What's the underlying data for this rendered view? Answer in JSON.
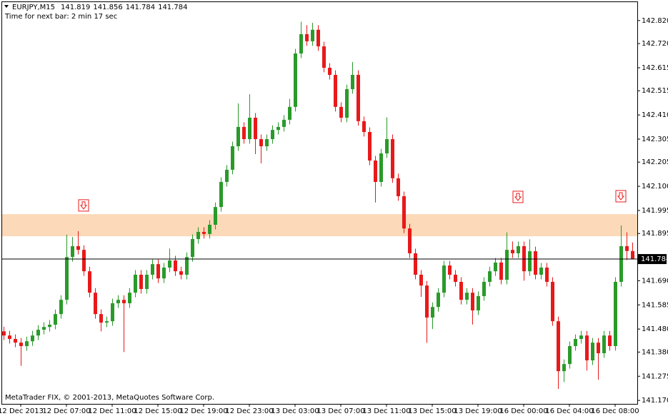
{
  "chart_data": {
    "type": "candlestick",
    "symbol": "EURJPY,M15",
    "timer": "Time for next bar: 2 min 17 sec",
    "footer": "MetaTrader FIX, © 2001-2013, MetaQuotes Software Corp.",
    "bull_color": "#2a9a2a",
    "bear_color": "#e8191a",
    "zone_color": "#fcd9b8",
    "categories": [
      null,
      null,
      null,
      "12 Dec 2013",
      null,
      null,
      null,
      null,
      null,
      null,
      null,
      "12 Dec 07:00",
      null,
      null,
      null,
      null,
      null,
      null,
      null,
      "12 Dec 11:00",
      null,
      null,
      null,
      null,
      null,
      null,
      null,
      "12 Dec 15:00",
      null,
      null,
      null,
      null,
      null,
      null,
      null,
      "12 Dec 19:00",
      null,
      null,
      null,
      null,
      null,
      null,
      null,
      "12 Dec 23:00",
      null,
      null,
      null,
      null,
      null,
      null,
      null,
      "13 Dec 03:00",
      null,
      null,
      null,
      null,
      null,
      null,
      null,
      "13 Dec 07:00",
      null,
      null,
      null,
      null,
      null,
      null,
      null,
      "13 Dec 11:00",
      null,
      null,
      null,
      null,
      null,
      null,
      null,
      "13 Dec 15:00",
      null,
      null,
      null,
      null,
      null,
      null,
      null,
      "13 Dec 19:00",
      null,
      null,
      null,
      null,
      null,
      null,
      null,
      "16 Dec 00:00",
      null,
      null,
      null,
      null,
      null,
      null,
      null,
      "16 Dec 04:00",
      null,
      null,
      null,
      null,
      null,
      null,
      null,
      "16 Dec 08:00",
      null,
      null,
      null
    ],
    "open": [
      141.47,
      141.452,
      141.437,
      141.421,
      141.406,
      141.427,
      141.452,
      141.477,
      141.489,
      141.499,
      141.545,
      141.607,
      141.793,
      141.84,
      141.824,
      141.731,
      141.638,
      141.545,
      141.508,
      141.514,
      141.592,
      141.607,
      141.592,
      141.638,
      141.716,
      141.654,
      141.716,
      141.762,
      141.7,
      141.747,
      141.778,
      141.731,
      141.716,
      141.793,
      141.871,
      141.902,
      141.893,
      141.933,
      142.01,
      142.119,
      142.172,
      142.274,
      142.358,
      142.305,
      142.398,
      142.305,
      142.274,
      142.305,
      142.345,
      142.358,
      142.389,
      142.445,
      142.677,
      142.761,
      142.73,
      142.78,
      142.708,
      142.615,
      142.584,
      142.445,
      142.398,
      142.522,
      142.584,
      142.383,
      142.336,
      142.212,
      142.119,
      142.243,
      142.305,
      142.135,
      142.057,
      141.917,
      141.809,
      141.716,
      141.669,
      141.53,
      141.576,
      141.638,
      141.756,
      141.716,
      141.685,
      141.607,
      141.638,
      141.561,
      141.623,
      141.685,
      141.731,
      141.769,
      141.694,
      141.824,
      141.809,
      141.84,
      141.731,
      141.818,
      141.716,
      141.747,
      141.685,
      141.514,
      141.297,
      141.328,
      141.406,
      141.437,
      141.452,
      141.344,
      141.421,
      141.375,
      141.452,
      141.406,
      141.685,
      141.84,
      141.819
    ],
    "high": [
      141.49,
      141.472,
      141.457,
      141.441,
      141.447,
      141.472,
      141.497,
      141.509,
      141.519,
      141.565,
      141.627,
      141.89,
      141.88,
      141.905,
      141.844,
      141.751,
      141.658,
      141.565,
      141.534,
      141.612,
      141.627,
      141.627,
      141.658,
      141.736,
      141.736,
      141.736,
      141.782,
      141.782,
      141.767,
      141.83,
      141.798,
      141.751,
      141.813,
      141.891,
      141.922,
      141.922,
      141.953,
      142.03,
      142.139,
      142.192,
      142.294,
      142.46,
      142.378,
      142.5,
      142.418,
      142.325,
      142.325,
      142.365,
      142.378,
      142.409,
      142.48,
      142.697,
      142.815,
      142.8,
      142.81,
      142.8,
      142.728,
      142.635,
      142.604,
      142.465,
      142.542,
      142.64,
      142.604,
      142.403,
      142.356,
      142.232,
      142.263,
      142.4,
      142.325,
      142.155,
      142.077,
      141.937,
      141.829,
      141.736,
      141.689,
      141.596,
      141.658,
      141.776,
      141.776,
      141.736,
      141.705,
      141.658,
      141.658,
      141.643,
      141.705,
      141.751,
      141.789,
      141.789,
      141.9,
      141.86,
      141.86,
      141.86,
      141.87,
      141.838,
      141.767,
      141.767,
      141.705,
      141.534,
      141.348,
      141.426,
      141.457,
      141.472,
      141.472,
      141.441,
      141.441,
      141.472,
      141.472,
      141.705,
      141.93,
      141.9,
      141.856
    ],
    "low": [
      141.432,
      141.417,
      141.401,
      141.32,
      141.386,
      141.407,
      141.432,
      141.457,
      141.469,
      141.479,
      141.525,
      141.587,
      141.773,
      141.804,
      141.711,
      141.618,
      141.525,
      141.47,
      141.488,
      141.494,
      141.572,
      141.38,
      141.572,
      141.618,
      141.634,
      141.634,
      141.696,
      141.68,
      141.68,
      141.727,
      141.711,
      141.696,
      141.696,
      141.773,
      141.851,
      141.873,
      141.873,
      141.913,
      141.99,
      142.099,
      142.152,
      142.254,
      142.285,
      142.285,
      142.24,
      142.2,
      142.254,
      142.285,
      142.325,
      142.338,
      142.369,
      142.425,
      142.657,
      142.71,
      142.71,
      142.688,
      142.595,
      142.564,
      142.425,
      142.378,
      142.378,
      142.502,
      142.363,
      142.316,
      142.192,
      142.03,
      142.099,
      142.223,
      142.115,
      142.037,
      141.897,
      141.789,
      141.696,
      141.62,
      141.42,
      141.48,
      141.556,
      141.618,
      141.696,
      141.665,
      141.587,
      141.587,
      141.5,
      141.541,
      141.603,
      141.665,
      141.711,
      141.674,
      141.674,
      141.789,
      141.789,
      141.69,
      141.711,
      141.696,
      141.696,
      141.665,
      141.494,
      141.22,
      141.25,
      141.308,
      141.386,
      141.417,
      141.3,
      141.324,
      141.26,
      141.355,
      141.386,
      141.386,
      141.665,
      141.78,
      141.784
    ],
    "close": [
      141.452,
      141.437,
      141.421,
      141.406,
      141.427,
      141.452,
      141.477,
      141.489,
      141.499,
      141.545,
      141.607,
      141.793,
      141.84,
      141.824,
      141.731,
      141.638,
      141.545,
      141.508,
      141.514,
      141.592,
      141.607,
      141.592,
      141.638,
      141.716,
      141.654,
      141.716,
      141.762,
      141.7,
      141.747,
      141.778,
      141.731,
      141.716,
      141.793,
      141.871,
      141.902,
      141.893,
      141.933,
      142.01,
      142.119,
      142.172,
      142.274,
      142.358,
      142.305,
      142.398,
      142.305,
      142.274,
      142.305,
      142.345,
      142.358,
      142.389,
      142.445,
      142.677,
      142.761,
      142.73,
      142.78,
      142.708,
      142.615,
      142.584,
      142.445,
      142.398,
      142.522,
      142.584,
      142.383,
      142.336,
      142.212,
      142.119,
      142.243,
      142.305,
      142.135,
      142.057,
      141.917,
      141.809,
      141.716,
      141.669,
      141.53,
      141.576,
      141.638,
      141.756,
      141.716,
      141.685,
      141.607,
      141.638,
      141.561,
      141.623,
      141.685,
      141.731,
      141.769,
      141.694,
      141.824,
      141.809,
      141.84,
      141.731,
      141.818,
      141.716,
      141.747,
      141.685,
      141.514,
      141.297,
      141.328,
      141.406,
      141.437,
      141.452,
      141.344,
      141.421,
      141.375,
      141.452,
      141.406,
      141.685,
      141.84,
      141.819,
      141.784
    ],
    "current_price": 141.784,
    "zone": [
      141.883,
      141.979
    ],
    "arrows": [
      {
        "category_index": 14,
        "price": 142.017
      },
      {
        "category_index": 90,
        "price": 142.054
      },
      {
        "category_index": 108,
        "price": 142.057
      }
    ],
    "ylim": [
      141.155,
      142.9
    ],
    "yticks": [
      {
        "value": 142.82,
        "label": "142.820"
      },
      {
        "value": 142.72,
        "label": "142.720"
      },
      142.615,
      142.515,
      {
        "value": 142.41,
        "label": "142.410"
      },
      142.305,
      142.205,
      {
        "value": 142.1,
        "label": "142.100"
      },
      141.995,
      141.895,
      {
        "value": 141.69,
        "label": "141.690"
      },
      141.585,
      {
        "value": 141.48,
        "label": "141.480"
      },
      {
        "value": 141.38,
        "label": "141.380"
      },
      141.275,
      {
        "value": 141.17,
        "label": "141.170"
      }
    ]
  }
}
